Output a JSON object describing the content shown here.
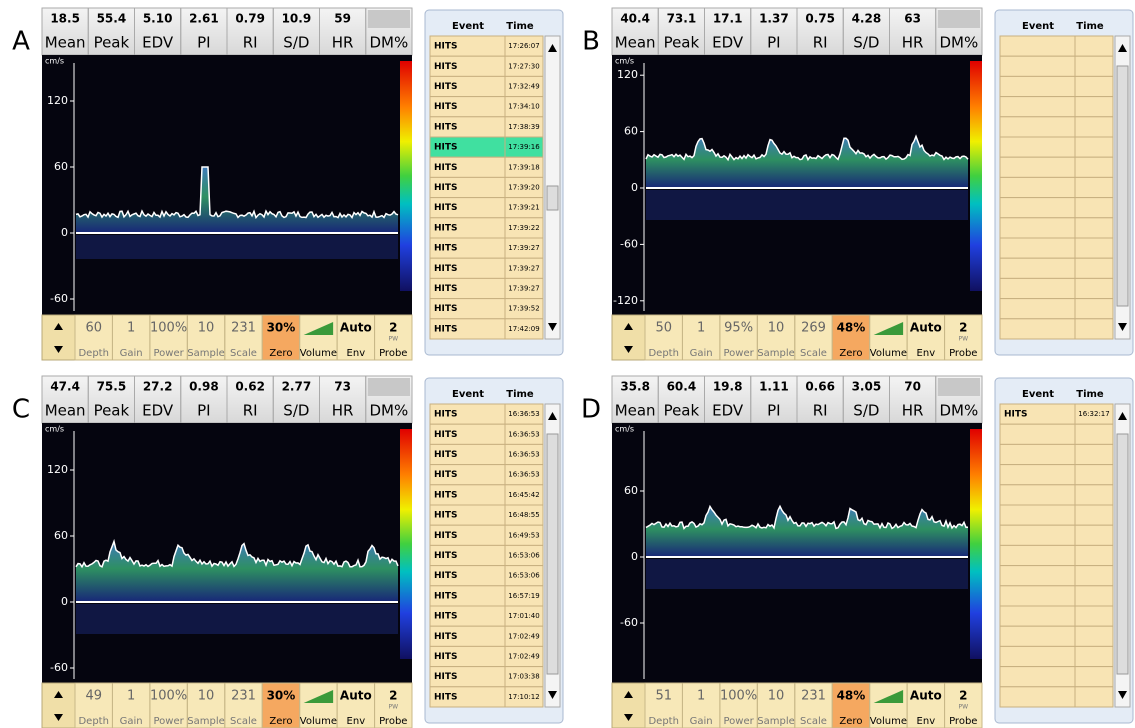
{
  "panels": [
    {
      "label": "A",
      "metrics": {
        "values": [
          "18.5",
          "55.4",
          "5.10",
          "2.61",
          "0.79",
          "10.9",
          "59"
        ],
        "names": [
          "Mean",
          "Peak",
          "EDV",
          "PI",
          "RI",
          "S/D",
          "HR",
          "DM%"
        ]
      },
      "axis": {
        "unit": "cm/s",
        "ticks": [
          120,
          60,
          0,
          -60
        ]
      },
      "controls": {
        "values": [
          "60",
          "1",
          "100%",
          "10",
          "231",
          "30%",
          "Auto",
          "2"
        ],
        "sub": "PW",
        "labels": [
          "Depth",
          "Gain",
          "Power",
          "Sample",
          "Scale",
          "Zero",
          "Volume",
          "Env",
          "Probe"
        ]
      },
      "events": {
        "header": [
          "Event",
          "Time"
        ],
        "selected": 5,
        "rows": [
          [
            "HITS",
            "17:26:07"
          ],
          [
            "HITS",
            "17:27:30"
          ],
          [
            "HITS",
            "17:32:49"
          ],
          [
            "HITS",
            "17:34:10"
          ],
          [
            "HITS",
            "17:38:39"
          ],
          [
            "HITS",
            "17:39:16"
          ],
          [
            "HITS",
            "17:39:18"
          ],
          [
            "HITS",
            "17:39:20"
          ],
          [
            "HITS",
            "17:39:21"
          ],
          [
            "HITS",
            "17:39:22"
          ],
          [
            "HITS",
            "17:39:27"
          ],
          [
            "HITS",
            "17:39:27"
          ],
          [
            "HITS",
            "17:39:27"
          ],
          [
            "HITS",
            "17:39:52"
          ],
          [
            "HITS",
            "17:42:09"
          ]
        ]
      }
    },
    {
      "label": "B",
      "metrics": {
        "values": [
          "40.4",
          "73.1",
          "17.1",
          "1.37",
          "0.75",
          "4.28",
          "63"
        ],
        "names": [
          "Mean",
          "Peak",
          "EDV",
          "PI",
          "RI",
          "S/D",
          "HR",
          "DM%"
        ]
      },
      "axis": {
        "unit": "cm/s",
        "ticks": [
          120,
          60,
          0,
          -60,
          -120
        ]
      },
      "controls": {
        "values": [
          "50",
          "1",
          "95%",
          "10",
          "269",
          "48%",
          "Auto",
          "2"
        ],
        "sub": "PW",
        "labels": [
          "Depth",
          "Gain",
          "Power",
          "Sample",
          "Scale",
          "Zero",
          "Volume",
          "Env",
          "Probe"
        ]
      },
      "events": {
        "header": [
          "Event",
          "Time"
        ],
        "rows": []
      }
    },
    {
      "label": "C",
      "metrics": {
        "values": [
          "47.4",
          "75.5",
          "27.2",
          "0.98",
          "0.62",
          "2.77",
          "73"
        ],
        "names": [
          "Mean",
          "Peak",
          "EDV",
          "PI",
          "RI",
          "S/D",
          "HR",
          "DM%"
        ]
      },
      "axis": {
        "unit": "cm/s",
        "ticks": [
          120,
          60,
          0,
          -60
        ]
      },
      "controls": {
        "values": [
          "49",
          "1",
          "100%",
          "10",
          "231",
          "30%",
          "Auto",
          "2"
        ],
        "sub": "PW",
        "labels": [
          "Depth",
          "Gain",
          "Power",
          "Sample",
          "Scale",
          "Zero",
          "Volume",
          "Env",
          "Probe"
        ]
      },
      "events": {
        "header": [
          "Event",
          "Time"
        ],
        "rows": [
          [
            "HITS",
            "16:36:53"
          ],
          [
            "HITS",
            "16:36:53"
          ],
          [
            "HITS",
            "16:36:53"
          ],
          [
            "HITS",
            "16:36:53"
          ],
          [
            "HITS",
            "16:45:42"
          ],
          [
            "HITS",
            "16:48:55"
          ],
          [
            "HITS",
            "16:49:53"
          ],
          [
            "HITS",
            "16:53:06"
          ],
          [
            "HITS",
            "16:53:06"
          ],
          [
            "HITS",
            "16:57:19"
          ],
          [
            "HITS",
            "17:01:40"
          ],
          [
            "HITS",
            "17:02:49"
          ],
          [
            "HITS",
            "17:02:49"
          ],
          [
            "HITS",
            "17:03:38"
          ],
          [
            "HITS",
            "17:10:12"
          ]
        ]
      }
    },
    {
      "label": "D",
      "metrics": {
        "values": [
          "35.8",
          "60.4",
          "19.8",
          "1.11",
          "0.66",
          "3.05",
          "70"
        ],
        "names": [
          "Mean",
          "Peak",
          "EDV",
          "PI",
          "RI",
          "S/D",
          "HR",
          "DM%"
        ]
      },
      "axis": {
        "unit": "cm/s",
        "ticks": [
          60,
          0,
          -60
        ]
      },
      "controls": {
        "values": [
          "51",
          "1",
          "100%",
          "10",
          "231",
          "48%",
          "Auto",
          "2"
        ],
        "sub": "PW",
        "labels": [
          "Depth",
          "Gain",
          "Power",
          "Sample",
          "Scale",
          "Zero",
          "Volume",
          "Env",
          "Probe"
        ]
      },
      "events": {
        "header": [
          "Event",
          "Time"
        ],
        "rows": [
          [
            "HITS",
            "16:32:17"
          ]
        ]
      }
    }
  ]
}
